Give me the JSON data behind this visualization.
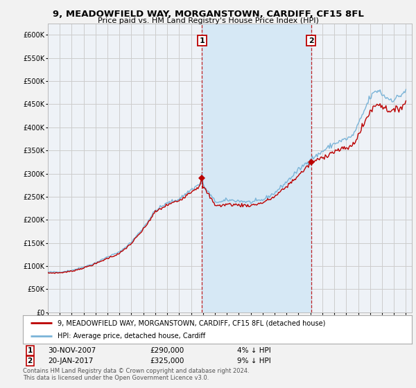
{
  "title": "9, MEADOWFIELD WAY, MORGANSTOWN, CARDIFF, CF15 8FL",
  "subtitle": "Price paid vs. HM Land Registry's House Price Index (HPI)",
  "ytick_vals": [
    0,
    50000,
    100000,
    150000,
    200000,
    250000,
    300000,
    350000,
    400000,
    450000,
    500000,
    550000,
    600000
  ],
  "ylim": [
    0,
    625000
  ],
  "xlim_start": 1995.0,
  "xlim_end": 2025.5,
  "sale1_x": 2007.917,
  "sale1_y": 290000,
  "sale2_x": 2017.05,
  "sale2_y": 325000,
  "sale1_date": "30-NOV-2007",
  "sale1_price": "£290,000",
  "sale1_note": "4% ↓ HPI",
  "sale2_date": "20-JAN-2017",
  "sale2_price": "£325,000",
  "sale2_note": "9% ↓ HPI",
  "hpi_color": "#7ab4d8",
  "price_color": "#bb0000",
  "shade_color": "#d6e8f5",
  "bg_color": "#f2f2f2",
  "plot_bg": "#eef2f7",
  "grid_color": "#cccccc",
  "legend_box1": "9, MEADOWFIELD WAY, MORGANSTOWN, CARDIFF, CF15 8FL (detached house)",
  "legend_box2": "HPI: Average price, detached house, Cardiff",
  "footer": "Contains HM Land Registry data © Crown copyright and database right 2024.\nThis data is licensed under the Open Government Licence v3.0."
}
